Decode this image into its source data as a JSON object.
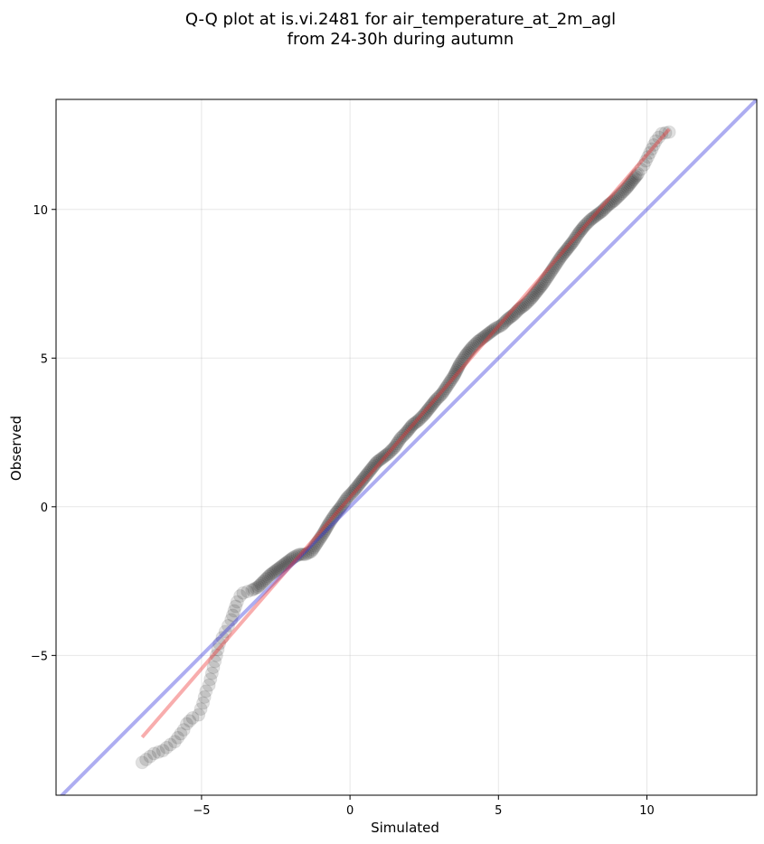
{
  "chart_data": {
    "type": "scatter",
    "title_line1": "Q-Q plot at is.vi.2481 for air_temperature_at_2m_agl",
    "title_line2": "from 24-30h during autumn",
    "xlabel": "Simulated",
    "ylabel": "Observed",
    "xlim": [
      -9.9,
      13.7
    ],
    "ylim": [
      -9.7,
      13.7
    ],
    "xticks": [
      -5,
      0,
      5,
      10
    ],
    "yticks": [
      -5,
      0,
      5,
      10
    ],
    "xtick_labels": [
      "−5",
      "0",
      "5",
      "10"
    ],
    "ytick_labels": [
      "−5",
      "0",
      "5",
      "10"
    ],
    "grid": true,
    "quantile_points": [
      [
        -7.0,
        -8.6
      ],
      [
        -6.6,
        -8.3
      ],
      [
        -6.3,
        -8.2
      ],
      [
        -6.05,
        -8.0
      ],
      [
        -5.9,
        -7.9
      ],
      [
        -5.6,
        -7.5
      ],
      [
        -5.5,
        -7.3
      ],
      [
        -5.3,
        -7.1
      ],
      [
        -5.1,
        -7.0
      ],
      [
        -4.95,
        -6.6
      ],
      [
        -4.85,
        -6.2
      ],
      [
        -4.75,
        -6.0
      ],
      [
        -4.7,
        -5.8
      ],
      [
        -4.65,
        -5.6
      ],
      [
        -4.6,
        -5.4
      ],
      [
        -4.55,
        -5.2
      ],
      [
        -4.5,
        -5.0
      ],
      [
        -4.45,
        -4.8
      ],
      [
        -4.4,
        -4.6
      ],
      [
        -4.3,
        -4.4
      ],
      [
        -4.2,
        -4.2
      ],
      [
        -4.1,
        -4.0
      ],
      [
        -4.0,
        -3.8
      ],
      [
        -3.9,
        -3.5
      ],
      [
        -3.8,
        -3.2
      ],
      [
        -3.7,
        -3.0
      ],
      [
        -3.6,
        -2.9
      ],
      [
        -3.3,
        -2.8
      ],
      [
        -3.1,
        -2.7
      ],
      [
        -2.9,
        -2.5
      ],
      [
        -2.7,
        -2.3
      ],
      [
        -2.5,
        -2.15
      ],
      [
        -2.3,
        -2.0
      ],
      [
        -2.1,
        -1.85
      ],
      [
        -1.9,
        -1.7
      ],
      [
        -1.7,
        -1.6
      ],
      [
        -1.5,
        -1.6
      ],
      [
        -1.3,
        -1.5
      ],
      [
        -1.1,
        -1.2
      ],
      [
        -0.9,
        -0.9
      ],
      [
        -0.7,
        -0.55
      ],
      [
        -0.5,
        -0.25
      ],
      [
        -0.3,
        0.0
      ],
      [
        -0.1,
        0.3
      ],
      [
        0.1,
        0.5
      ],
      [
        0.3,
        0.75
      ],
      [
        0.5,
        1.0
      ],
      [
        0.7,
        1.25
      ],
      [
        0.9,
        1.5
      ],
      [
        1.1,
        1.65
      ],
      [
        1.3,
        1.8
      ],
      [
        1.5,
        2.0
      ],
      [
        1.7,
        2.3
      ],
      [
        1.9,
        2.5
      ],
      [
        2.1,
        2.75
      ],
      [
        2.3,
        2.9
      ],
      [
        2.5,
        3.1
      ],
      [
        2.7,
        3.35
      ],
      [
        2.9,
        3.6
      ],
      [
        3.1,
        3.8
      ],
      [
        3.3,
        4.1
      ],
      [
        3.5,
        4.4
      ],
      [
        3.7,
        4.8
      ],
      [
        3.9,
        5.1
      ],
      [
        4.1,
        5.35
      ],
      [
        4.3,
        5.55
      ],
      [
        4.5,
        5.7
      ],
      [
        4.7,
        5.85
      ],
      [
        4.9,
        6.0
      ],
      [
        5.1,
        6.1
      ],
      [
        5.3,
        6.3
      ],
      [
        5.5,
        6.45
      ],
      [
        5.7,
        6.65
      ],
      [
        5.9,
        6.8
      ],
      [
        6.1,
        7.0
      ],
      [
        6.3,
        7.25
      ],
      [
        6.5,
        7.5
      ],
      [
        6.7,
        7.8
      ],
      [
        6.9,
        8.1
      ],
      [
        7.1,
        8.4
      ],
      [
        7.3,
        8.65
      ],
      [
        7.5,
        8.9
      ],
      [
        7.7,
        9.2
      ],
      [
        7.9,
        9.45
      ],
      [
        8.1,
        9.65
      ],
      [
        8.3,
        9.8
      ],
      [
        8.5,
        9.95
      ],
      [
        8.7,
        10.15
      ],
      [
        8.9,
        10.3
      ],
      [
        9.1,
        10.5
      ],
      [
        9.3,
        10.7
      ],
      [
        9.5,
        10.95
      ],
      [
        9.7,
        11.2
      ],
      [
        9.9,
        11.5
      ],
      [
        10.1,
        11.9
      ],
      [
        10.3,
        12.3
      ],
      [
        10.5,
        12.55
      ],
      [
        10.75,
        12.6
      ]
    ],
    "identity_line": {
      "x": [
        -9.9,
        13.7
      ],
      "y": [
        -9.9,
        13.7
      ],
      "color": "#3333dd",
      "opacity": 0.4
    },
    "fit_line": {
      "x": [
        -7.0,
        10.75
      ],
      "y": [
        -7.75,
        12.7
      ],
      "color": "#ee3333",
      "opacity": 0.4
    },
    "marker_color": "#000000",
    "marker_opacity": 0.12
  }
}
